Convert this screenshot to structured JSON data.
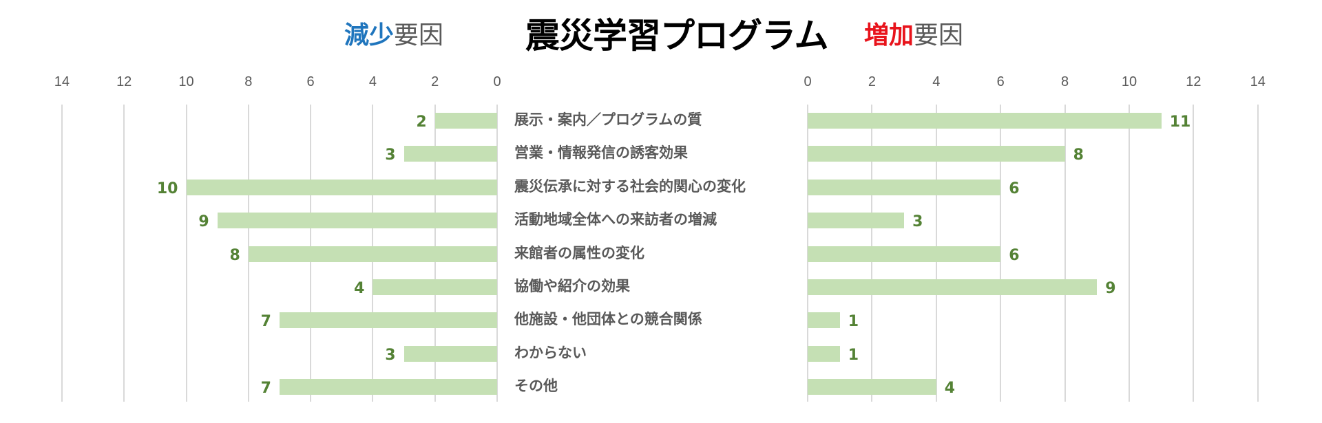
{
  "header": {
    "title": "震災学習プログラム",
    "left_title": {
      "accent": "減少",
      "rest": "要因",
      "accent_color": "#1f75bd"
    },
    "right_title": {
      "accent": "増加",
      "rest": "要因",
      "accent_color": "#e8131b"
    }
  },
  "colors": {
    "bar": "#c5e0b4",
    "label": "#548235",
    "text": "#595959",
    "grid": "#d9d9d9"
  },
  "chart_data": {
    "type": "bar",
    "title": "震災学習プログラム",
    "orientation": "horizontal",
    "layout": "butterfly",
    "categories": [
      "展示・案内／プログラムの質",
      "営業・情報発信の誘客効果",
      "震災伝承に対する社会的関心の変化",
      "活動地域全体への来訪者の増減",
      "来館者の属性の変化",
      "協働や紹介の効果",
      "他施設・他団体との競合関係",
      "わからない",
      "その他"
    ],
    "series": [
      {
        "name": "減少要因",
        "values": [
          2,
          3,
          10,
          9,
          8,
          4,
          7,
          3,
          7
        ],
        "side": "left"
      },
      {
        "name": "増加要因",
        "values": [
          11,
          8,
          6,
          3,
          6,
          9,
          1,
          1,
          4
        ],
        "side": "right"
      }
    ],
    "left_axis": {
      "ticks": [
        14,
        12,
        10,
        8,
        6,
        4,
        2,
        0
      ],
      "range": [
        0,
        14
      ],
      "reversed": true
    },
    "right_axis": {
      "ticks": [
        0,
        2,
        4,
        6,
        8,
        10,
        12,
        14
      ],
      "range": [
        0,
        14
      ]
    },
    "grid": true,
    "data_labels": true
  }
}
